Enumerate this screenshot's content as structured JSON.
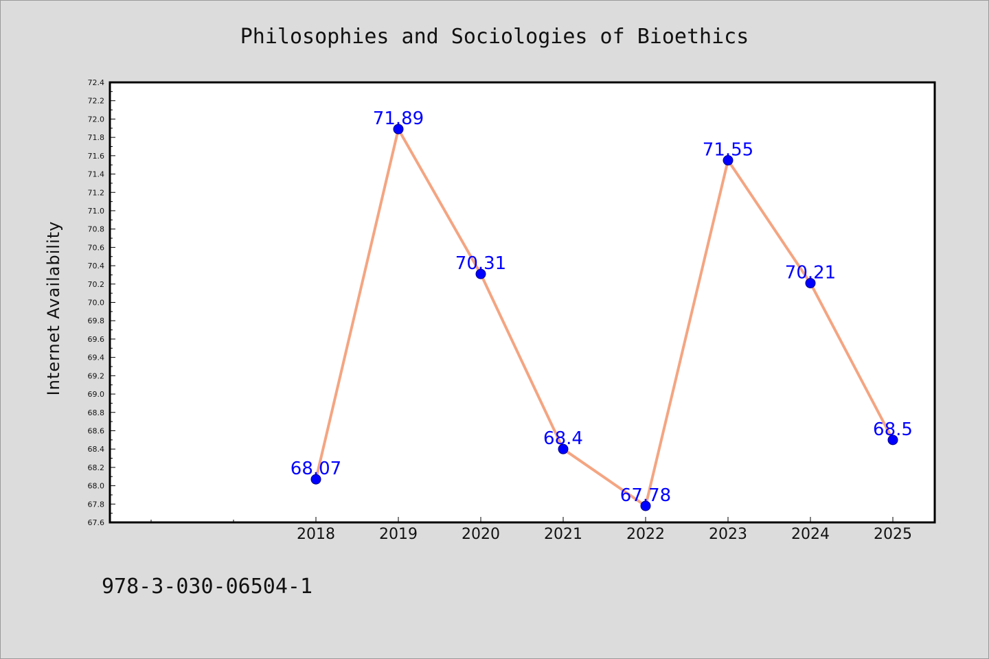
{
  "chart_data": {
    "type": "line",
    "title": "Philosophies and Sociologies of Bioethics",
    "xlabel": "",
    "ylabel": "Internet Availability",
    "categories": [
      "2018",
      "2019",
      "2020",
      "2021",
      "2022",
      "2023",
      "2024",
      "2025"
    ],
    "series": [
      {
        "values": [
          68.07,
          71.89,
          70.31,
          68.4,
          67.78,
          71.55,
          70.21,
          68.5
        ],
        "data_labels": [
          "68.07",
          "71.89",
          "70.31",
          "68.4",
          "67.78",
          "71.55",
          "70.21",
          "68.5"
        ]
      }
    ],
    "ylim": [
      67.6,
      72.4
    ],
    "yticks": [
      "67.6",
      "67.8",
      "68.0",
      "68.2",
      "68.4",
      "68.6",
      "68.8",
      "69.0",
      "69.2",
      "69.4",
      "69.6",
      "69.8",
      "70.0",
      "70.2",
      "70.4",
      "70.6",
      "70.8",
      "71.0",
      "71.2",
      "71.4",
      "71.6",
      "71.8",
      "72.0",
      "72.2",
      "72.4"
    ],
    "grid": false,
    "legend": "none",
    "colors": {
      "line": "#f4a582",
      "marker": "#0000ff",
      "marker_edge": "#00008b",
      "data_label": "#0000ff",
      "plot_background": "#ffffff",
      "figure_background": "#dcdcdc"
    }
  },
  "footer": {
    "isbn": "978-3-030-06504-1"
  }
}
